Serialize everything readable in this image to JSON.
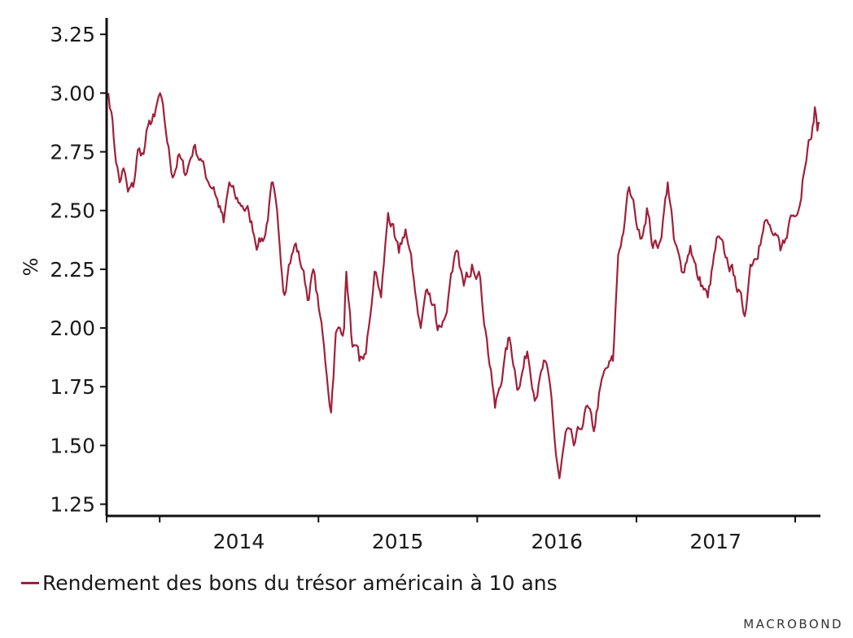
{
  "chart_data": {
    "type": "line",
    "title": "",
    "xlabel": "",
    "ylabel": "%",
    "ylim": [
      1.2,
      3.32
    ],
    "xlim": [
      "2013-09-01",
      "2018-02-28"
    ],
    "y_ticks": [
      "1.25",
      "1.50",
      "1.75",
      "2.00",
      "2.25",
      "2.50",
      "2.75",
      "3.00",
      "3.25"
    ],
    "x_tick_labels": [
      "2014",
      "2015",
      "2016",
      "2017"
    ],
    "year_boundaries": [
      "2014-01-01",
      "2015-01-01",
      "2016-01-01",
      "2017-01-01",
      "2018-01-01"
    ],
    "grid": false,
    "legend_position": "bottom-left",
    "series": [
      {
        "name": "Rendement des bons du trésor américain à 10 ans",
        "color": "#a0203a",
        "points": [
          [
            "2013-09-05",
            3.0
          ],
          [
            "2013-09-12",
            2.92
          ],
          [
            "2013-09-20",
            2.75
          ],
          [
            "2013-10-01",
            2.62
          ],
          [
            "2013-10-10",
            2.68
          ],
          [
            "2013-10-20",
            2.58
          ],
          [
            "2013-11-01",
            2.6
          ],
          [
            "2013-11-12",
            2.76
          ],
          [
            "2013-11-25",
            2.74
          ],
          [
            "2013-12-05",
            2.86
          ],
          [
            "2013-12-20",
            2.9
          ],
          [
            "2014-01-02",
            3.0
          ],
          [
            "2014-01-15",
            2.84
          ],
          [
            "2014-01-31",
            2.64
          ],
          [
            "2014-02-15",
            2.74
          ],
          [
            "2014-03-01",
            2.65
          ],
          [
            "2014-03-20",
            2.77
          ],
          [
            "2014-04-05",
            2.72
          ],
          [
            "2014-04-20",
            2.63
          ],
          [
            "2014-05-05",
            2.6
          ],
          [
            "2014-05-28",
            2.45
          ],
          [
            "2014-06-10",
            2.62
          ],
          [
            "2014-06-25",
            2.55
          ],
          [
            "2014-07-10",
            2.52
          ],
          [
            "2014-07-25",
            2.49
          ],
          [
            "2014-08-15",
            2.35
          ],
          [
            "2014-09-01",
            2.4
          ],
          [
            "2014-09-18",
            2.62
          ],
          [
            "2014-10-01",
            2.42
          ],
          [
            "2014-10-15",
            2.14
          ],
          [
            "2014-10-25",
            2.27
          ],
          [
            "2014-11-10",
            2.36
          ],
          [
            "2014-11-25",
            2.25
          ],
          [
            "2014-12-10",
            2.12
          ],
          [
            "2014-12-20",
            2.25
          ],
          [
            "2015-01-05",
            2.05
          ],
          [
            "2015-01-20",
            1.8
          ],
          [
            "2015-01-30",
            1.64
          ],
          [
            "2015-02-10",
            1.98
          ],
          [
            "2015-03-01",
            2.0
          ],
          [
            "2015-03-06",
            2.24
          ],
          [
            "2015-03-20",
            1.92
          ],
          [
            "2015-04-05",
            1.86
          ],
          [
            "2015-04-20",
            1.89
          ],
          [
            "2015-04-30",
            2.05
          ],
          [
            "2015-05-10",
            2.24
          ],
          [
            "2015-05-25",
            2.13
          ],
          [
            "2015-06-10",
            2.49
          ],
          [
            "2015-06-25",
            2.39
          ],
          [
            "2015-07-05",
            2.32
          ],
          [
            "2015-07-20",
            2.42
          ],
          [
            "2015-08-05",
            2.25
          ],
          [
            "2015-08-24",
            2.0
          ],
          [
            "2015-09-05",
            2.16
          ],
          [
            "2015-09-25",
            2.1
          ],
          [
            "2015-10-02",
            1.99
          ],
          [
            "2015-10-20",
            2.05
          ],
          [
            "2015-11-05",
            2.24
          ],
          [
            "2015-11-15",
            2.33
          ],
          [
            "2015-12-01",
            2.18
          ],
          [
            "2015-12-20",
            2.27
          ],
          [
            "2016-01-05",
            2.24
          ],
          [
            "2016-01-20",
            1.99
          ],
          [
            "2016-02-11",
            1.66
          ],
          [
            "2016-03-01",
            1.83
          ],
          [
            "2016-03-15",
            1.96
          ],
          [
            "2016-04-05",
            1.74
          ],
          [
            "2016-04-25",
            1.9
          ],
          [
            "2016-05-15",
            1.7
          ],
          [
            "2016-06-05",
            1.86
          ],
          [
            "2016-06-20",
            1.7
          ],
          [
            "2016-06-30",
            1.46
          ],
          [
            "2016-07-08",
            1.36
          ],
          [
            "2016-07-25",
            1.57
          ],
          [
            "2016-08-10",
            1.5
          ],
          [
            "2016-08-25",
            1.57
          ],
          [
            "2016-09-10",
            1.67
          ],
          [
            "2016-09-25",
            1.56
          ],
          [
            "2016-10-10",
            1.75
          ],
          [
            "2016-10-25",
            1.83
          ],
          [
            "2016-11-08",
            1.86
          ],
          [
            "2016-11-20",
            2.31
          ],
          [
            "2016-12-05",
            2.45
          ],
          [
            "2016-12-15",
            2.6
          ],
          [
            "2016-12-28",
            2.5
          ],
          [
            "2017-01-10",
            2.38
          ],
          [
            "2017-01-25",
            2.51
          ],
          [
            "2017-02-08",
            2.34
          ],
          [
            "2017-02-25",
            2.37
          ],
          [
            "2017-03-14",
            2.62
          ],
          [
            "2017-03-28",
            2.38
          ],
          [
            "2017-04-15",
            2.24
          ],
          [
            "2017-05-05",
            2.35
          ],
          [
            "2017-05-20",
            2.23
          ],
          [
            "2017-06-14",
            2.13
          ],
          [
            "2017-07-07",
            2.39
          ],
          [
            "2017-07-25",
            2.3
          ],
          [
            "2017-08-15",
            2.22
          ],
          [
            "2017-09-07",
            2.05
          ],
          [
            "2017-09-20",
            2.27
          ],
          [
            "2017-10-10",
            2.35
          ],
          [
            "2017-10-25",
            2.46
          ],
          [
            "2017-11-10",
            2.4
          ],
          [
            "2017-11-28",
            2.33
          ],
          [
            "2017-12-10",
            2.38
          ],
          [
            "2017-12-22",
            2.48
          ],
          [
            "2018-01-05",
            2.48
          ],
          [
            "2018-01-18",
            2.63
          ],
          [
            "2018-02-01",
            2.8
          ],
          [
            "2018-02-10",
            2.86
          ],
          [
            "2018-02-15",
            2.94
          ],
          [
            "2018-02-21",
            2.84
          ],
          [
            "2018-02-26",
            2.87
          ]
        ]
      }
    ]
  },
  "legend": {
    "label": "Rendement des bons du trésor américain à 10 ans"
  },
  "brand": {
    "name": "MACROBOND"
  }
}
